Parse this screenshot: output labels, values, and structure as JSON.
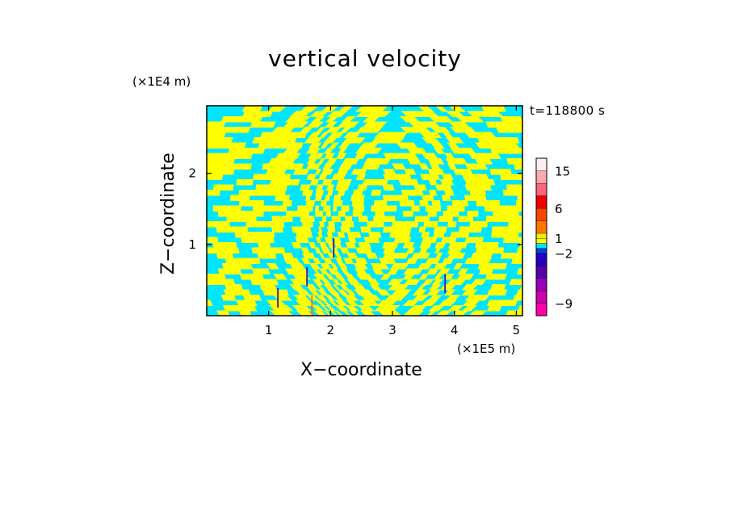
{
  "chart_data": {
    "type": "heatmap",
    "title": "vertical velocity",
    "xlabel": "X−coordinate",
    "ylabel": "Z−coordinate",
    "x_unit": "(×1E5 m)",
    "y_unit": "(×1E4 m)",
    "time_label": "t=118800 s",
    "xlim": [
      0,
      5.1
    ],
    "ylim": [
      0,
      2.95
    ],
    "x_ticks": [
      1,
      2,
      3,
      4,
      5
    ],
    "x_tick_labels": [
      "1",
      "2",
      "3",
      "4",
      "5"
    ],
    "y_ticks": [
      1,
      2
    ],
    "y_tick_labels": [
      "1",
      "2"
    ],
    "field_colors": {
      "positive": "#ffff00",
      "negative": "#00e5ff",
      "strong_updraft": "#ff7700",
      "strong_downdraft": "#4422aa"
    },
    "colorbar": {
      "levels": [
        -12,
        -9,
        -6,
        -4,
        -3,
        -2,
        -1,
        0,
        1,
        2,
        4,
        6,
        9,
        12,
        15,
        20
      ],
      "colors": [
        "#ff00aa",
        "#cc00aa",
        "#9900bb",
        "#5500aa",
        "#2200bb",
        "#0044dd",
        "#00e5ff",
        "#ffff00",
        "#eeee00",
        "#ff7700",
        "#ff4400",
        "#ee0000",
        "#ff6677",
        "#ffaaaa",
        "#ffeeee"
      ],
      "tick_values": [
        -9,
        -2,
        1,
        6,
        15
      ],
      "tick_labels": [
        "−9",
        "−2",
        "1",
        "6",
        "15"
      ]
    }
  }
}
